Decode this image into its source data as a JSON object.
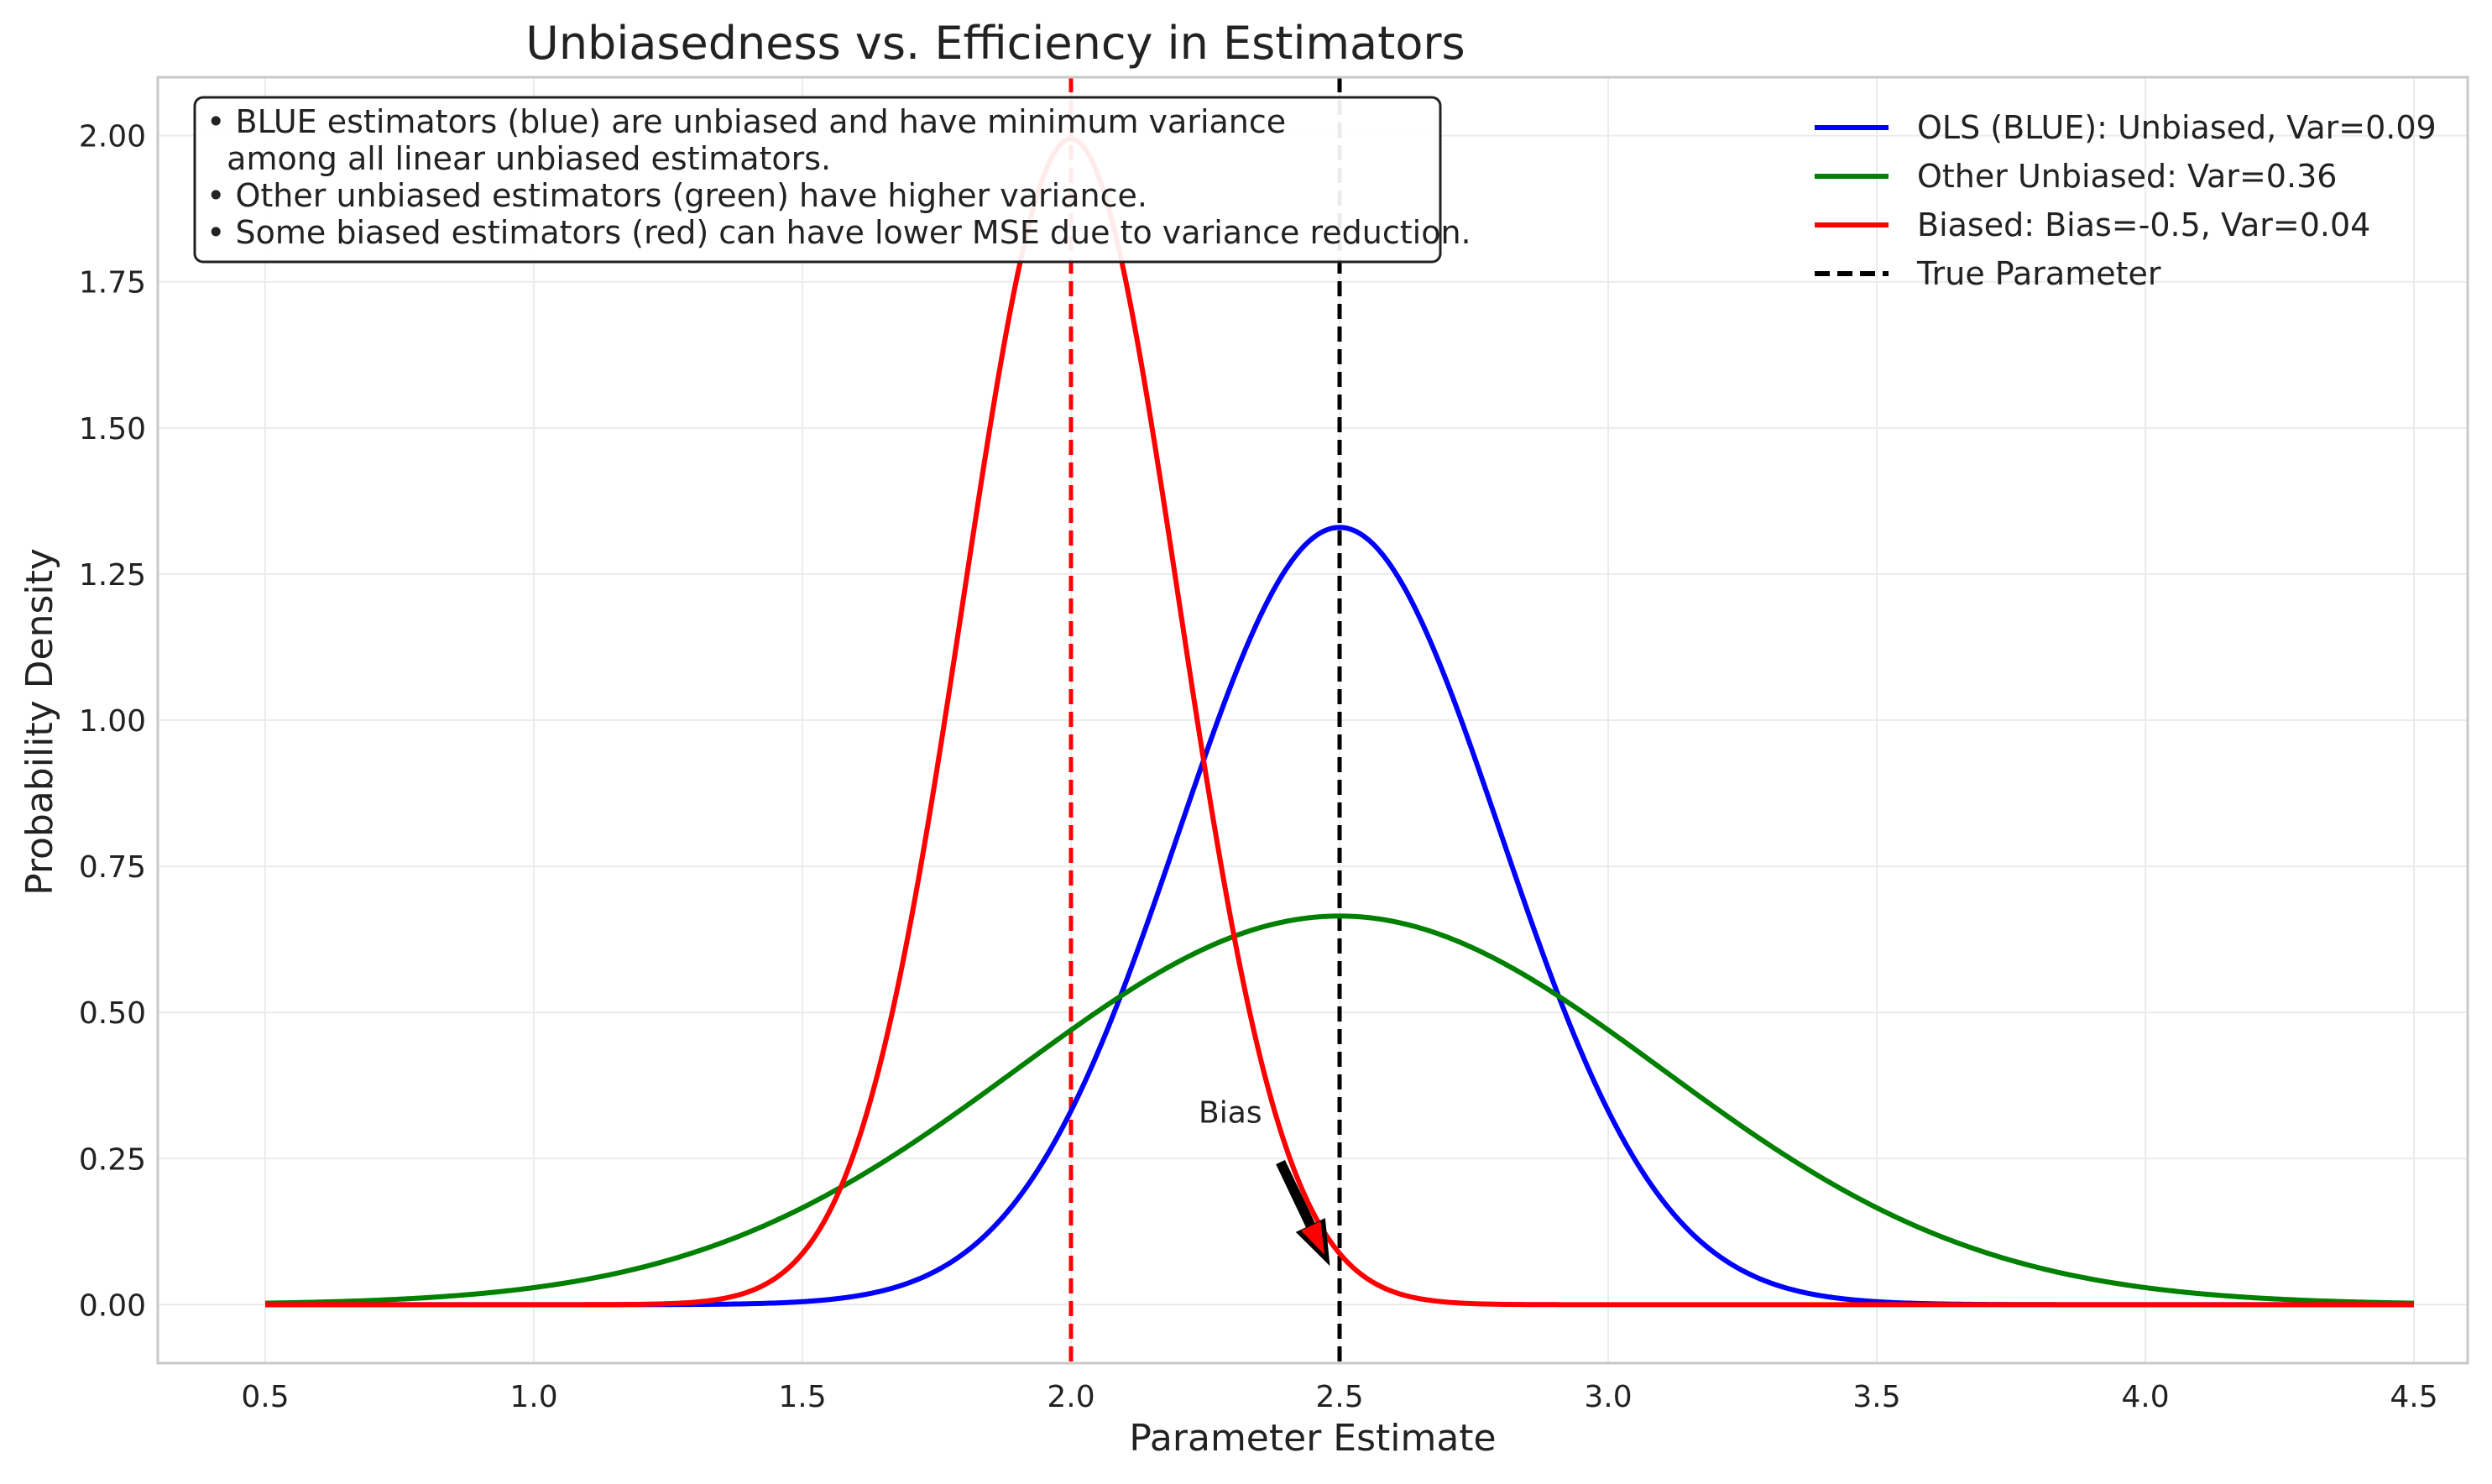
{
  "chart_data": {
    "type": "line",
    "title": "Unbiasedness vs. Efficiency in Estimators",
    "xlabel": "Parameter Estimate",
    "ylabel": "Probability Density",
    "xlim": [
      0.3,
      4.6
    ],
    "ylim": [
      -0.1,
      2.1
    ],
    "xticks": [
      0.5,
      1.0,
      1.5,
      2.0,
      2.5,
      3.0,
      3.5,
      4.0,
      4.5
    ],
    "xtick_labels": [
      "0.5",
      "1.0",
      "1.5",
      "2.0",
      "2.5",
      "3.0",
      "3.5",
      "4.0",
      "4.5"
    ],
    "yticks": [
      0.0,
      0.25,
      0.5,
      0.75,
      1.0,
      1.25,
      1.5,
      1.75,
      2.0
    ],
    "ytick_labels": [
      "0.00",
      "0.25",
      "0.50",
      "0.75",
      "1.00",
      "1.25",
      "1.50",
      "1.75",
      "2.00"
    ],
    "grid": true,
    "legend_position": "top-right",
    "x_range": [
      0.5,
      4.5
    ],
    "series": [
      {
        "name": "OLS (BLUE): Unbiased, Var=0.09",
        "color": "#0000ff",
        "distribution": "normal",
        "mean": 2.5,
        "variance": 0.09
      },
      {
        "name": "Other Unbiased: Var=0.36",
        "color": "#008000",
        "distribution": "normal",
        "mean": 2.5,
        "variance": 0.36
      },
      {
        "name": "Biased: Bias=-0.5, Var=0.04",
        "color": "#ff0000",
        "distribution": "normal",
        "mean": 2.0,
        "variance": 0.04
      }
    ],
    "reference_lines": [
      {
        "name": "True Parameter",
        "x": 2.5,
        "color": "#000000",
        "style": "dashed",
        "in_legend": true
      },
      {
        "x": 2.0,
        "color": "#ff0000",
        "style": "dashed",
        "in_legend": false
      }
    ],
    "annotations": [
      {
        "text": "Bias",
        "text_x": 2.25,
        "text_y": 0.3,
        "arrow_to_x": 2.48,
        "arrow_to_y": 0.07
      }
    ],
    "note_lines": [
      "• BLUE estimators (blue) are unbiased and have minimum variance",
      "  among all linear unbiased estimators.",
      "• Other unbiased estimators (green) have higher variance.",
      "• Some biased estimators (red) can have lower MSE due to variance reduction."
    ]
  }
}
